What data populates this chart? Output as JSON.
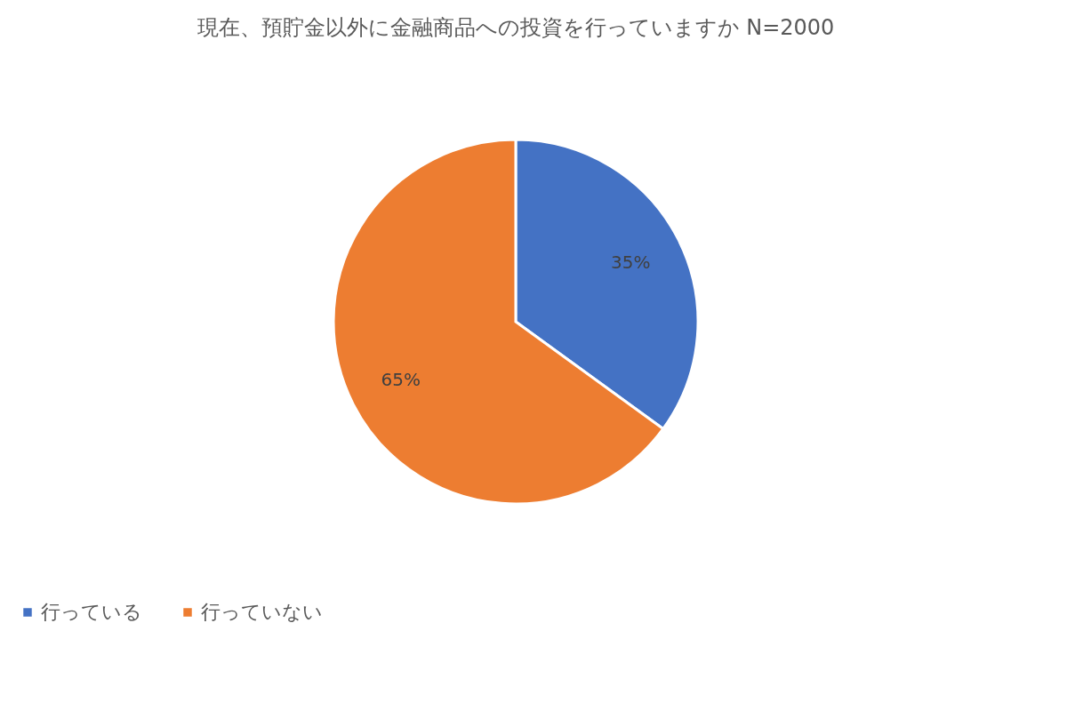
{
  "chart_data": {
    "type": "pie",
    "title": "現在、預貯金以外に金融商品への投資を行っていますか N=2000",
    "categories": [
      "行っている",
      "行っていない"
    ],
    "values": [
      35,
      65
    ],
    "colors": [
      "#4472c4",
      "#ed7d31"
    ],
    "value_labels": [
      "35%",
      "65%"
    ],
    "legend": "bottom"
  }
}
